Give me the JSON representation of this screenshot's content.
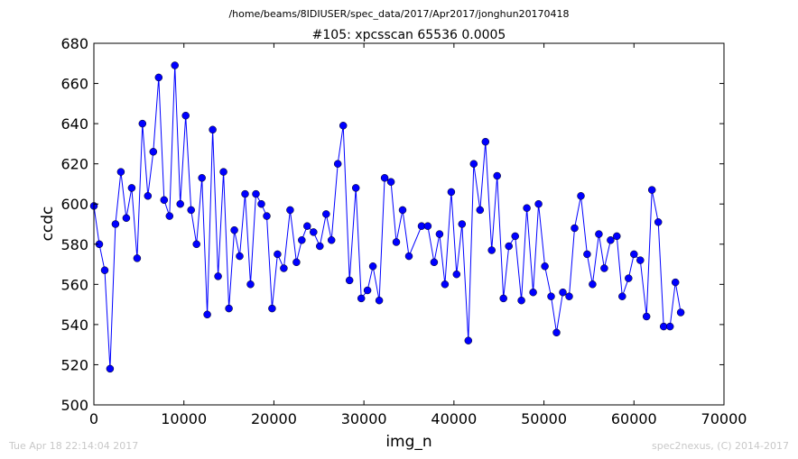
{
  "header": {
    "path": "/home/beams/8IDIUSER/spec_data/2017/Apr2017/jonghun20170418"
  },
  "footer": {
    "timestamp": "Tue Apr 18 22:14:04 2017",
    "credit": "spec2nexus, (C) 2014-2017"
  },
  "colors": {
    "series": "#0000ff",
    "axes": "#000000",
    "footer_text": "#c8c8c8",
    "background": "#ffffff"
  },
  "chart_data": {
    "type": "line",
    "title": "#105: xpcsscan 65536 0.0005",
    "xlabel": "img_n",
    "ylabel": "ccdc",
    "xlim": [
      0,
      70000
    ],
    "ylim": [
      500,
      680
    ],
    "xticks": [
      0,
      10000,
      20000,
      30000,
      40000,
      50000,
      60000,
      70000
    ],
    "yticks": [
      500,
      520,
      540,
      560,
      580,
      600,
      620,
      640,
      660,
      680
    ],
    "grid": false,
    "legend": "none",
    "marker": "circle",
    "series": [
      {
        "x": [
          0,
          600,
          1200,
          1800,
          2400,
          3000,
          3600,
          4200,
          4800,
          5400,
          6000,
          6600,
          7200,
          7800,
          8400,
          9000,
          9600,
          10200,
          10800,
          11400,
          12000,
          12600,
          13200,
          13800,
          14400,
          15000,
          15600,
          16200,
          16800,
          17400,
          18000,
          18600,
          19200,
          19800,
          20400,
          21100,
          21800,
          22500,
          23100,
          23700,
          24400,
          25100,
          25800,
          26400,
          27100,
          27700,
          28400,
          29100,
          29700,
          30400,
          31000,
          31700,
          32300,
          33000,
          33600,
          34300,
          35000,
          36400,
          37100,
          37800,
          38400,
          39000,
          39700,
          40300,
          40900,
          41600,
          42200,
          42900,
          43500,
          44200,
          44800,
          45500,
          46100,
          46800,
          47500,
          48100,
          48800,
          49400,
          50100,
          50800,
          51400,
          52100,
          52800,
          53400,
          54100,
          54800,
          55400,
          56100,
          56700,
          57400,
          58100,
          58700,
          59400,
          60000,
          60700,
          61400,
          62000,
          62700,
          63300,
          64000,
          64600,
          65200
        ],
        "values": [
          599,
          580,
          567,
          518,
          590,
          616,
          593,
          608,
          573,
          640,
          604,
          626,
          663,
          602,
          594,
          669,
          600,
          644,
          597,
          580,
          613,
          545,
          637,
          564,
          616,
          548,
          587,
          574,
          605,
          560,
          605,
          600,
          594,
          548,
          575,
          568,
          597,
          571,
          582,
          589,
          586,
          579,
          595,
          582,
          620,
          639,
          562,
          608,
          553,
          557,
          569,
          552,
          613,
          611,
          581,
          597,
          574,
          589,
          589,
          571,
          585,
          560,
          606,
          565,
          590,
          532,
          620,
          597,
          631,
          577,
          614,
          553,
          579,
          584,
          552,
          598,
          556,
          600,
          569,
          554,
          536,
          556,
          554,
          588,
          604,
          575,
          560,
          585,
          568,
          582,
          584,
          554,
          563,
          575,
          572,
          544,
          607,
          591,
          539,
          539,
          561,
          546
        ]
      }
    ]
  }
}
